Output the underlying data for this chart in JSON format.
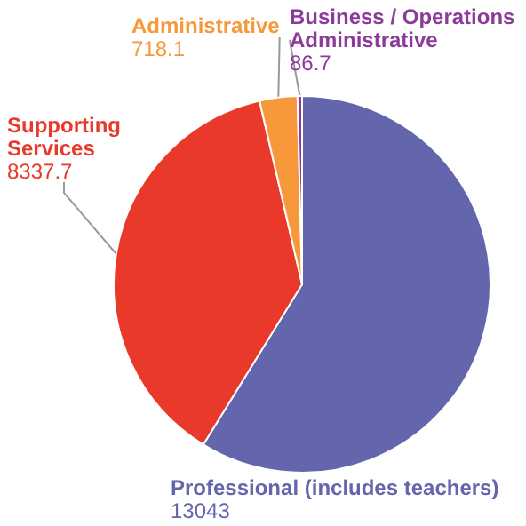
{
  "chart_data": {
    "type": "pie",
    "categories": [
      "Professional (includes teachers)",
      "Supporting Services",
      "Administrative",
      "Business / Operations Administrative"
    ],
    "values": [
      13043,
      8337.7,
      718.1,
      86.7
    ],
    "colors": [
      "#6466ad",
      "#e8392a",
      "#f7993b",
      "#8d3b9b"
    ],
    "data_labels": true
  }
}
